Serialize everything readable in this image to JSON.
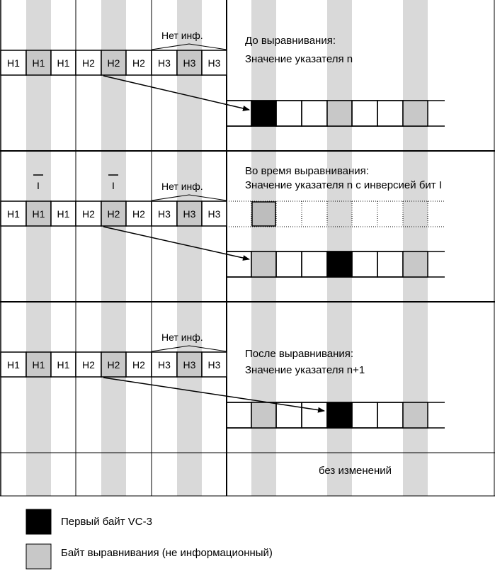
{
  "header_labels": [
    "H1",
    "H1",
    "H1",
    "H2",
    "H2",
    "H2",
    "H3",
    "H3",
    "H3"
  ],
  "no_info_label": "Нет инф.",
  "inverse_mark": "I",
  "sections": [
    {
      "title_line1": "До выравнивания:",
      "title_line2": "Значение указателя n",
      "show_inverse_marks": false,
      "vc3_first_byte_index": 0
    },
    {
      "title_line1": "Во время выравнивания:",
      "title_line2": "Значение указателя n с инверсией бит I",
      "show_inverse_marks": true,
      "vc3_first_byte_index": 3
    },
    {
      "title_line1": "После выравнивания:",
      "title_line2": "Значение указателя n+1",
      "show_inverse_marks": false,
      "vc3_first_byte_index": 3
    }
  ],
  "footer_text": "без изменений",
  "legend": {
    "vc3_first_byte": "Первый байт VC-3",
    "justification_byte": "Байт выравнивания (не информационный)"
  },
  "colors": {
    "stripe": "#d9d9d9",
    "vc3_fill": "#000000",
    "justification_fill": "#c8c8c8",
    "line": "#000000"
  }
}
